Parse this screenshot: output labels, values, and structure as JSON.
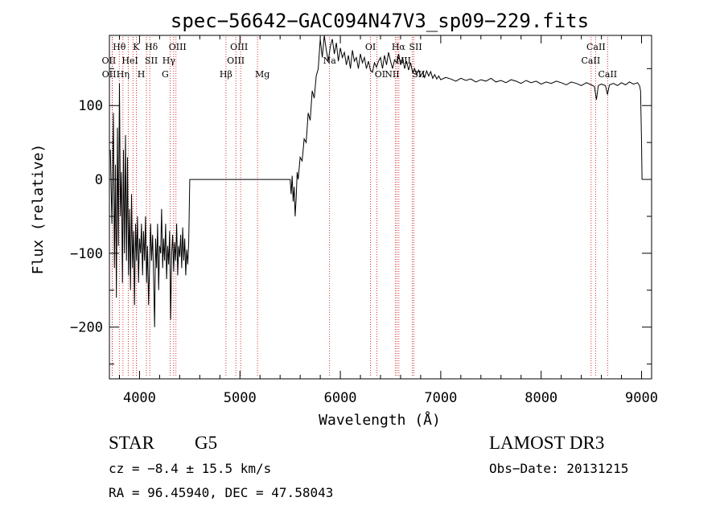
{
  "chart_data": {
    "type": "line",
    "title": "spec−56642−GAC094N47V3_sp09−229.fits",
    "xlabel": "Wavelength (Å)",
    "ylabel": "Flux (relative)",
    "xlim": [
      3700,
      9100
    ],
    "ylim": [
      -270,
      195
    ],
    "xticks": [
      4000,
      5000,
      6000,
      7000,
      8000,
      9000
    ],
    "yticks": [
      -200,
      -100,
      0,
      100
    ],
    "xtick_labels": [
      "4000",
      "5000",
      "6000",
      "7000",
      "8000",
      "9000"
    ],
    "ytick_labels": [
      "−200",
      "−100",
      "0",
      "100"
    ],
    "series": [
      {
        "name": "flux",
        "points": [
          [
            3710,
            40
          ],
          [
            3725,
            -60
          ],
          [
            3740,
            90
          ],
          [
            3750,
            -120
          ],
          [
            3760,
            20
          ],
          [
            3770,
            -160
          ],
          [
            3780,
            70
          ],
          [
            3790,
            -90
          ],
          [
            3800,
            130
          ],
          [
            3810,
            -50
          ],
          [
            3820,
            10
          ],
          [
            3830,
            -140
          ],
          [
            3840,
            40
          ],
          [
            3850,
            -100
          ],
          [
            3860,
            60
          ],
          [
            3870,
            -110
          ],
          [
            3880,
            30
          ],
          [
            3890,
            -130
          ],
          [
            3900,
            -40
          ],
          [
            3910,
            -150
          ],
          [
            3920,
            -20
          ],
          [
            3930,
            -120
          ],
          [
            3940,
            -70
          ],
          [
            3950,
            -170
          ],
          [
            3960,
            -60
          ],
          [
            3970,
            -110
          ],
          [
            3980,
            -50
          ],
          [
            3990,
            -140
          ],
          [
            4000,
            -80
          ],
          [
            4010,
            -100
          ],
          [
            4020,
            -60
          ],
          [
            4030,
            -130
          ],
          [
            4040,
            -70
          ],
          [
            4050,
            -110
          ],
          [
            4060,
            -50
          ],
          [
            4070,
            -140
          ],
          [
            4080,
            -90
          ],
          [
            4090,
            -170
          ],
          [
            4100,
            -120
          ],
          [
            4110,
            -60
          ],
          [
            4120,
            -110
          ],
          [
            4130,
            -75
          ],
          [
            4140,
            -130
          ],
          [
            4150,
            -200
          ],
          [
            4160,
            -80
          ],
          [
            4170,
            -120
          ],
          [
            4180,
            -60
          ],
          [
            4190,
            -150
          ],
          [
            4200,
            -90
          ],
          [
            4210,
            -100
          ],
          [
            4220,
            -40
          ],
          [
            4230,
            -120
          ],
          [
            4240,
            -80
          ],
          [
            4250,
            -110
          ],
          [
            4260,
            -60
          ],
          [
            4270,
            -135
          ],
          [
            4280,
            -90
          ],
          [
            4290,
            -115
          ],
          [
            4300,
            -70
          ],
          [
            4310,
            -190
          ],
          [
            4320,
            -100
          ],
          [
            4330,
            -75
          ],
          [
            4340,
            -125
          ],
          [
            4350,
            -85
          ],
          [
            4360,
            -110
          ],
          [
            4370,
            -60
          ],
          [
            4380,
            -130
          ],
          [
            4390,
            -90
          ],
          [
            4400,
            -105
          ],
          [
            4410,
            -75
          ],
          [
            4420,
            -120
          ],
          [
            4430,
            -65
          ],
          [
            4440,
            -110
          ],
          [
            4450,
            -80
          ],
          [
            4460,
            -130
          ],
          [
            4470,
            -95
          ],
          [
            4480,
            -115
          ],
          [
            4490,
            -85
          ],
          [
            4500,
            0
          ],
          [
            5500,
            0
          ],
          [
            5510,
            -20
          ],
          [
            5520,
            5
          ],
          [
            5530,
            -30
          ],
          [
            5540,
            -10
          ],
          [
            5550,
            -50
          ],
          [
            5560,
            -25
          ],
          [
            5570,
            10
          ],
          [
            5580,
            0
          ],
          [
            5600,
            30
          ],
          [
            5620,
            25
          ],
          [
            5640,
            55
          ],
          [
            5660,
            50
          ],
          [
            5680,
            90
          ],
          [
            5700,
            80
          ],
          [
            5720,
            120
          ],
          [
            5740,
            110
          ],
          [
            5760,
            140
          ],
          [
            5780,
            150
          ],
          [
            5800,
            190
          ],
          [
            5820,
            165
          ],
          [
            5840,
            195
          ],
          [
            5860,
            175
          ],
          [
            5880,
            160
          ],
          [
            5900,
            180
          ],
          [
            5920,
            190
          ],
          [
            5940,
            170
          ],
          [
            5960,
            185
          ],
          [
            5980,
            160
          ],
          [
            6000,
            178
          ],
          [
            6020,
            165
          ],
          [
            6040,
            172
          ],
          [
            6060,
            155
          ],
          [
            6080,
            168
          ],
          [
            6100,
            150
          ],
          [
            6120,
            175
          ],
          [
            6140,
            160
          ],
          [
            6160,
            165
          ],
          [
            6180,
            150
          ],
          [
            6200,
            170
          ],
          [
            6220,
            158
          ],
          [
            6240,
            165
          ],
          [
            6260,
            150
          ],
          [
            6280,
            160
          ],
          [
            6300,
            148
          ],
          [
            6320,
            145
          ],
          [
            6340,
            158
          ],
          [
            6360,
            152
          ],
          [
            6380,
            160
          ],
          [
            6400,
            165
          ],
          [
            6420,
            150
          ],
          [
            6440,
            168
          ],
          [
            6460,
            155
          ],
          [
            6480,
            172
          ],
          [
            6500,
            160
          ],
          [
            6520,
            150
          ],
          [
            6540,
            162
          ],
          [
            6560,
            158
          ],
          [
            6580,
            170
          ],
          [
            6600,
            155
          ],
          [
            6620,
            165
          ],
          [
            6640,
            150
          ],
          [
            6660,
            160
          ],
          [
            6680,
            148
          ],
          [
            6700,
            158
          ],
          [
            6720,
            145
          ],
          [
            6740,
            150
          ],
          [
            6760,
            142
          ],
          [
            6780,
            148
          ],
          [
            6800,
            140
          ],
          [
            6820,
            145
          ],
          [
            6840,
            138
          ],
          [
            6860,
            147
          ],
          [
            6880,
            140
          ],
          [
            6900,
            146
          ],
          [
            6920,
            137
          ],
          [
            6940,
            142
          ],
          [
            6960,
            136
          ],
          [
            6980,
            140
          ],
          [
            7000,
            135
          ],
          [
            7050,
            138
          ],
          [
            7100,
            136
          ],
          [
            7150,
            133
          ],
          [
            7200,
            137
          ],
          [
            7250,
            134
          ],
          [
            7300,
            136
          ],
          [
            7350,
            132
          ],
          [
            7400,
            135
          ],
          [
            7450,
            133
          ],
          [
            7500,
            137
          ],
          [
            7550,
            132
          ],
          [
            7600,
            134
          ],
          [
            7650,
            131
          ],
          [
            7700,
            135
          ],
          [
            7750,
            133
          ],
          [
            7800,
            130
          ],
          [
            7850,
            134
          ],
          [
            7900,
            131
          ],
          [
            7950,
            133
          ],
          [
            8000,
            129
          ],
          [
            8050,
            132
          ],
          [
            8100,
            130
          ],
          [
            8150,
            133
          ],
          [
            8200,
            131
          ],
          [
            8250,
            128
          ],
          [
            8300,
            132
          ],
          [
            8350,
            130
          ],
          [
            8400,
            127
          ],
          [
            8450,
            131
          ],
          [
            8500,
            128
          ],
          [
            8530,
            126
          ],
          [
            8550,
            108
          ],
          [
            8570,
            127
          ],
          [
            8600,
            129
          ],
          [
            8640,
            127
          ],
          [
            8660,
            115
          ],
          [
            8680,
            128
          ],
          [
            8720,
            130
          ],
          [
            8760,
            127
          ],
          [
            8800,
            131
          ],
          [
            8840,
            128
          ],
          [
            8880,
            132
          ],
          [
            8920,
            129
          ],
          [
            8960,
            131
          ],
          [
            8980,
            127
          ],
          [
            8990,
            120
          ],
          [
            9000,
            50
          ],
          [
            9005,
            0
          ]
        ]
      }
    ],
    "line_markers": [
      {
        "name": "Hθ",
        "x": 3798
      },
      {
        "name": "OII",
        "x": 3727
      },
      {
        "name": "OII",
        "x": 3729
      },
      {
        "name": "Hη",
        "x": 3835
      },
      {
        "name": "HeI",
        "x": 3889
      },
      {
        "name": "K",
        "x": 3934
      },
      {
        "name": "H",
        "x": 3969
      },
      {
        "name": "SII",
        "x": 4069
      },
      {
        "name": "Hδ",
        "x": 4102
      },
      {
        "name": "OIII",
        "x": 4363
      },
      {
        "name": "Hγ",
        "x": 4340
      },
      {
        "name": "G",
        "x": 4304
      },
      {
        "name": "Hβ",
        "x": 4861
      },
      {
        "name": "OIII",
        "x": 4959
      },
      {
        "name": "OIII",
        "x": 5007
      },
      {
        "name": "Mg",
        "x": 5175
      },
      {
        "name": "Na",
        "x": 5893
      },
      {
        "name": "OI",
        "x": 6300
      },
      {
        "name": "OI",
        "x": 6363
      },
      {
        "name": "NII",
        "x": 6548
      },
      {
        "name": "Hα",
        "x": 6563
      },
      {
        "name": "NII",
        "x": 6583
      },
      {
        "name": "SII",
        "x": 6717
      },
      {
        "name": "SII",
        "x": 6731
      },
      {
        "name": "CaII",
        "x": 8498
      },
      {
        "name": "CaII",
        "x": 8542
      },
      {
        "name": "CaII",
        "x": 8662
      }
    ]
  },
  "info": {
    "object_class": "STAR",
    "subclass": "G5",
    "survey": "LAMOST DR3",
    "redshift": "cz = −8.4 ± 15.5 km/s",
    "obs_date": "Obs−Date: 20131215",
    "coords": "RA =  96.45940, DEC =  47.58043"
  },
  "colors": {
    "line": "#000000",
    "marker": "#cc0000"
  }
}
